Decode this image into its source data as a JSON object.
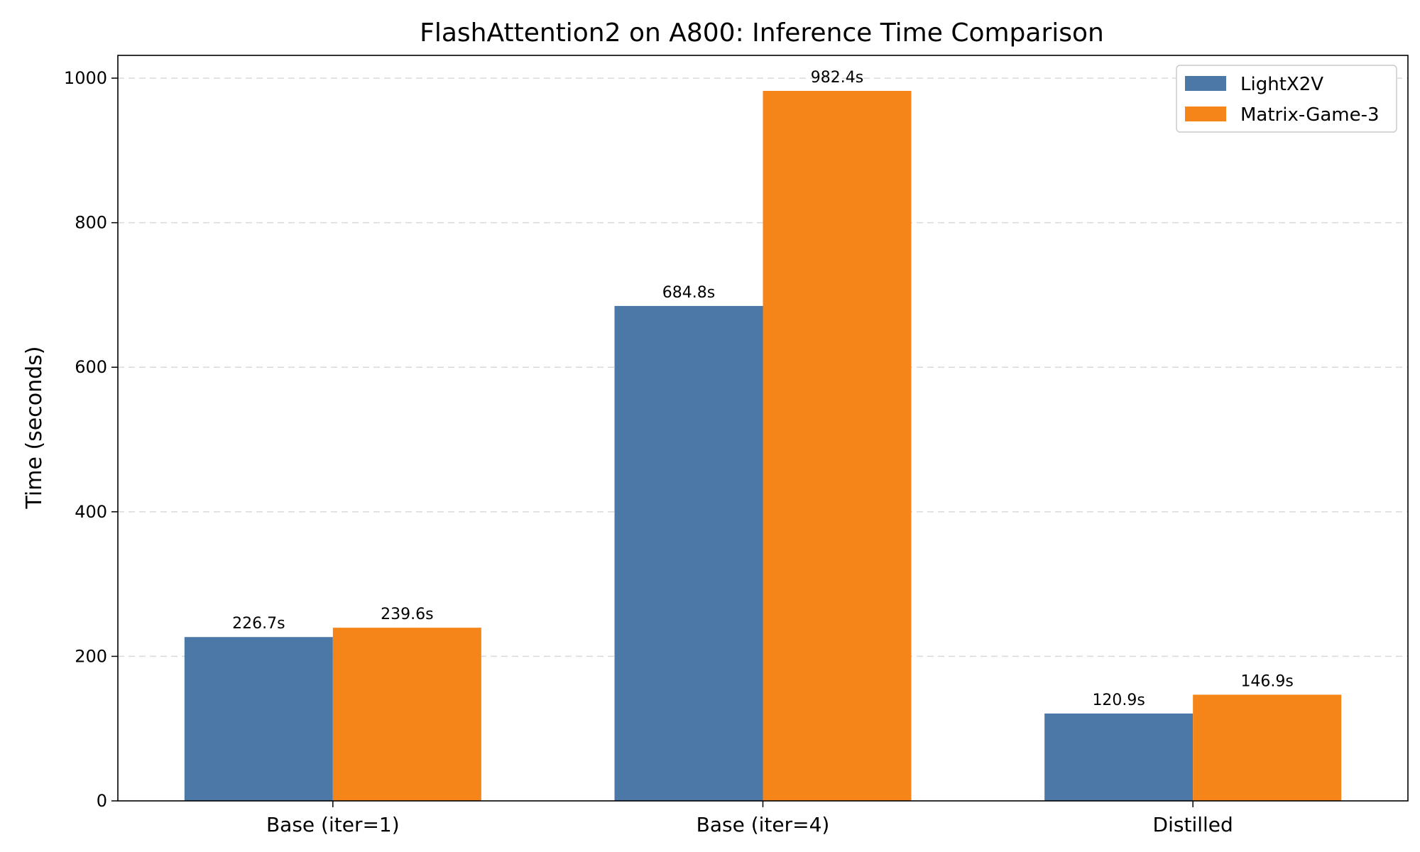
{
  "chart_data": {
    "type": "bar",
    "title": "FlashAttention2 on A800: Inference Time Comparison",
    "xlabel": "",
    "ylabel": "Time (seconds)",
    "categories": [
      "Base (iter=1)",
      "Base (iter=4)",
      "Distilled"
    ],
    "series": [
      {
        "name": "LightX2V",
        "color": "#4C78A8",
        "values": [
          226.7,
          684.8,
          120.9
        ],
        "labels": [
          "226.7s",
          "684.8s",
          "120.9s"
        ]
      },
      {
        "name": "Matrix-Game-3",
        "color": "#F58518",
        "values": [
          239.6,
          982.4,
          146.9
        ],
        "labels": [
          "239.6s",
          "982.4s",
          "146.9s"
        ]
      }
    ],
    "ylim": [
      0,
      1031.5
    ],
    "yticks": [
      0,
      200,
      400,
      600,
      800,
      1000
    ],
    "grid": "y dashed",
    "legend_position": "top-right"
  }
}
